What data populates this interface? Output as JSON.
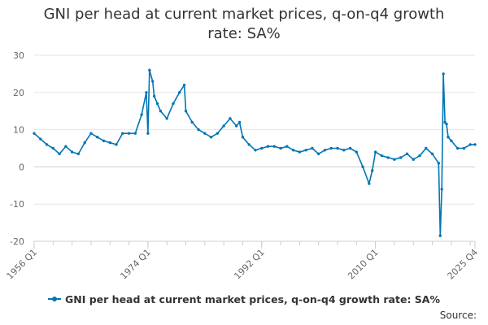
{
  "chart_data": {
    "type": "line",
    "title": "GNI per head at current market prices, q-on-q4 growth rate: SA%",
    "xlabel": "",
    "ylabel": "",
    "ylim": [
      -20,
      30
    ],
    "yticks": [
      -20,
      -10,
      0,
      10,
      20,
      30
    ],
    "x_range": [
      "1956 Q1",
      "2025 Q4"
    ],
    "x_tick_labels": [
      "1956 Q1",
      "1974 Q1",
      "1992 Q1",
      "2010 Q1",
      "2025 Q4"
    ],
    "x_tick_years": [
      1956,
      1974,
      1992,
      2010,
      2025.75
    ],
    "legend_position": "bottom",
    "grid": true,
    "series": [
      {
        "name": "GNI per head at current market prices, q-on-q4 growth rate: SA%",
        "color": "#0075b6",
        "x": [
          1956,
          1957,
          1958,
          1959,
          1960,
          1961,
          1962,
          1963,
          1964,
          1965,
          1966,
          1967,
          1968,
          1969,
          1970,
          1971,
          1972,
          1973,
          1973.75,
          1974,
          1974.25,
          1974.75,
          1975,
          1975.5,
          1976,
          1977,
          1978,
          1979,
          1979.75,
          1980,
          1981,
          1982,
          1983,
          1984,
          1985,
          1986,
          1987,
          1988,
          1988.5,
          1989,
          1990,
          1991,
          1992,
          1993,
          1994,
          1995,
          1996,
          1997,
          1998,
          1999,
          2000,
          2001,
          2002,
          2003,
          2004,
          2005,
          2006,
          2007,
          2008,
          2009,
          2009.5,
          2010,
          2011,
          2012,
          2013,
          2014,
          2015,
          2016,
          2017,
          2018,
          2019,
          2020,
          2020.25,
          2020.5,
          2020.75,
          2021,
          2021.25,
          2021.5,
          2022,
          2023,
          2024,
          2025,
          2025.75
        ],
        "values": [
          9,
          7.5,
          6,
          5,
          3.5,
          5.5,
          4,
          3.5,
          6.5,
          9,
          8,
          7,
          6.5,
          6,
          9,
          9,
          9,
          14,
          20,
          9,
          26,
          23,
          19,
          17,
          15,
          13,
          17,
          20,
          22,
          15,
          12,
          10,
          9,
          8,
          9,
          11,
          13,
          11,
          12,
          8,
          6,
          4.5,
          5,
          5.5,
          5.5,
          5,
          5.5,
          4.5,
          4,
          4.5,
          5,
          3.5,
          4.5,
          5,
          5,
          4.5,
          5,
          4,
          0,
          -4.5,
          -1,
          4,
          3,
          2.5,
          2,
          2.5,
          3.5,
          2,
          3,
          5,
          3.5,
          1,
          -18.5,
          -6,
          25,
          12,
          11.5,
          8,
          7,
          5,
          5,
          6,
          6
        ]
      }
    ]
  },
  "legend": {
    "label": "GNI per head at current market prices, q-on-q4 growth rate: SA%"
  },
  "source": "Source:"
}
